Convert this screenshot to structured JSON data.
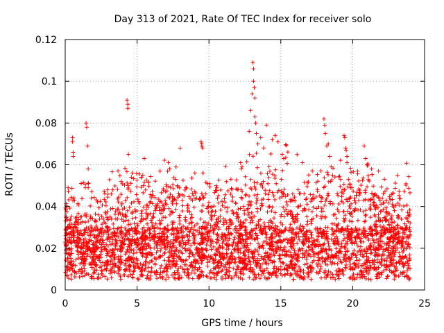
{
  "chart_data": {
    "type": "scatter",
    "title": "Day 313 of 2021, Rate Of TEC Index for receiver solo",
    "xlabel": "GPS time / hours",
    "ylabel": "ROTI / TECUs",
    "xlim": [
      0,
      25
    ],
    "ylim": [
      0,
      0.12
    ],
    "x_ticks": [
      0,
      5,
      10,
      15,
      20,
      25
    ],
    "y_ticks": [
      0,
      0.02,
      0.04,
      0.06,
      0.08,
      0.1,
      0.12
    ],
    "x_tick_labels": [
      "0",
      "5",
      "10",
      "15",
      "20",
      "25"
    ],
    "y_tick_labels": [
      "0",
      "0.02",
      "0.04",
      "0.06",
      "0.08",
      "0.1",
      "0.12"
    ],
    "grid": true,
    "marker": "+",
    "color": "#ff0000",
    "series": [
      {
        "name": "ROTI",
        "base_band": [
          0.005,
          0.03
        ],
        "highlight_points": [
          {
            "x": 0.2,
            "y": 0.049
          },
          {
            "x": 0.5,
            "y": 0.073
          },
          {
            "x": 0.5,
            "y": 0.071
          },
          {
            "x": 0.55,
            "y": 0.066
          },
          {
            "x": 0.55,
            "y": 0.064
          },
          {
            "x": 1.45,
            "y": 0.08
          },
          {
            "x": 1.5,
            "y": 0.078
          },
          {
            "x": 1.55,
            "y": 0.069
          },
          {
            "x": 1.6,
            "y": 0.058
          },
          {
            "x": 1.6,
            "y": 0.051
          },
          {
            "x": 1.6,
            "y": 0.049
          },
          {
            "x": 3.2,
            "y": 0.046
          },
          {
            "x": 3.9,
            "y": 0.052
          },
          {
            "x": 4.3,
            "y": 0.091
          },
          {
            "x": 4.35,
            "y": 0.089
          },
          {
            "x": 4.35,
            "y": 0.087
          },
          {
            "x": 4.4,
            "y": 0.065
          },
          {
            "x": 4.6,
            "y": 0.054
          },
          {
            "x": 5.4,
            "y": 0.055
          },
          {
            "x": 5.5,
            "y": 0.063
          },
          {
            "x": 5.45,
            "y": 0.05
          },
          {
            "x": 7.7,
            "y": 0.053
          },
          {
            "x": 7.8,
            "y": 0.05
          },
          {
            "x": 9.45,
            "y": 0.071
          },
          {
            "x": 9.5,
            "y": 0.07
          },
          {
            "x": 9.5,
            "y": 0.069
          },
          {
            "x": 9.55,
            "y": 0.068
          },
          {
            "x": 10.5,
            "y": 0.05
          },
          {
            "x": 10.55,
            "y": 0.049
          },
          {
            "x": 12.2,
            "y": 0.061
          },
          {
            "x": 12.25,
            "y": 0.058
          },
          {
            "x": 12.3,
            "y": 0.059
          },
          {
            "x": 12.8,
            "y": 0.076
          },
          {
            "x": 12.9,
            "y": 0.086
          },
          {
            "x": 13.0,
            "y": 0.094
          },
          {
            "x": 13.05,
            "y": 0.109
          },
          {
            "x": 13.1,
            "y": 0.106
          },
          {
            "x": 13.1,
            "y": 0.1
          },
          {
            "x": 13.15,
            "y": 0.097
          },
          {
            "x": 13.2,
            "y": 0.092
          },
          {
            "x": 13.2,
            "y": 0.083
          },
          {
            "x": 13.25,
            "y": 0.08
          },
          {
            "x": 13.3,
            "y": 0.075
          },
          {
            "x": 13.4,
            "y": 0.07
          },
          {
            "x": 13.6,
            "y": 0.073
          },
          {
            "x": 13.8,
            "y": 0.068
          },
          {
            "x": 14.0,
            "y": 0.079
          },
          {
            "x": 14.4,
            "y": 0.072
          },
          {
            "x": 14.6,
            "y": 0.074
          },
          {
            "x": 14.8,
            "y": 0.071
          },
          {
            "x": 15.1,
            "y": 0.065
          },
          {
            "x": 15.2,
            "y": 0.063
          },
          {
            "x": 16.5,
            "y": 0.061
          },
          {
            "x": 18.0,
            "y": 0.082
          },
          {
            "x": 18.05,
            "y": 0.079
          },
          {
            "x": 18.1,
            "y": 0.075
          },
          {
            "x": 18.2,
            "y": 0.069
          },
          {
            "x": 18.3,
            "y": 0.07
          },
          {
            "x": 18.4,
            "y": 0.064
          },
          {
            "x": 18.5,
            "y": 0.059
          },
          {
            "x": 18.6,
            "y": 0.055
          },
          {
            "x": 19.4,
            "y": 0.074
          },
          {
            "x": 19.45,
            "y": 0.073
          },
          {
            "x": 19.5,
            "y": 0.068
          },
          {
            "x": 19.55,
            "y": 0.067
          },
          {
            "x": 19.6,
            "y": 0.064
          },
          {
            "x": 19.6,
            "y": 0.061
          },
          {
            "x": 20.8,
            "y": 0.069
          },
          {
            "x": 20.9,
            "y": 0.063
          },
          {
            "x": 21.0,
            "y": 0.06
          },
          {
            "x": 21.8,
            "y": 0.057
          },
          {
            "x": 22.9,
            "y": 0.038
          }
        ]
      }
    ]
  }
}
